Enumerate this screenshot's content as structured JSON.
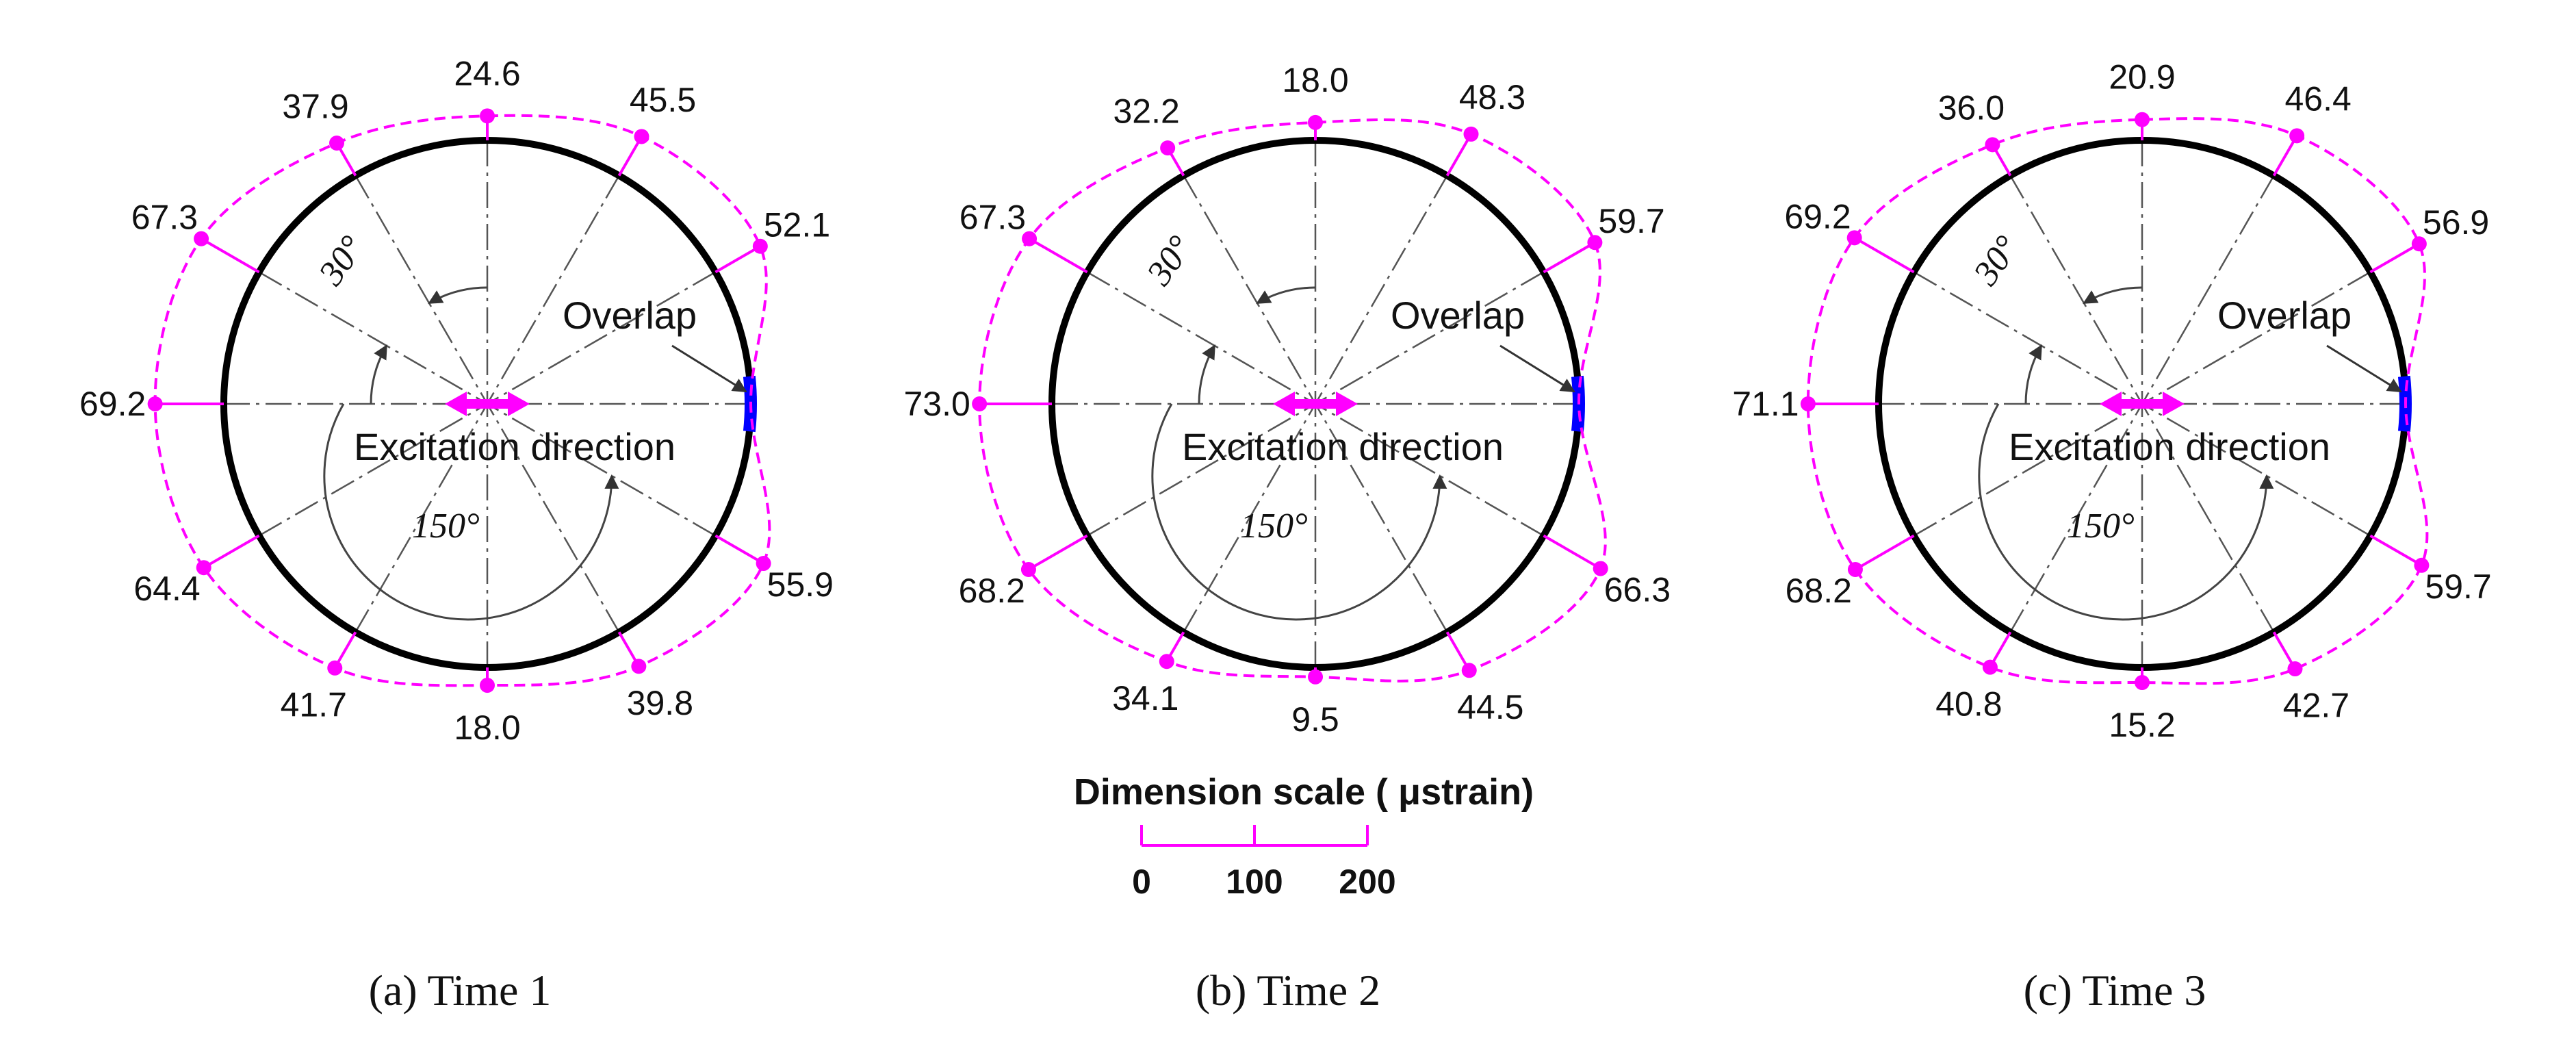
{
  "colors": {
    "circle": "#000000",
    "strain": "#ff00ff",
    "overlap": "#0000ff",
    "axes": "#555555",
    "text": "#111111"
  },
  "angle_labels": {
    "small": "30°",
    "large": "150°"
  },
  "annotations": {
    "overlap": "Overlap",
    "excitation": "Excitation direction"
  },
  "scale": {
    "title": "Dimension scale ( μstrain)",
    "ticks": [
      "0",
      "100",
      "200"
    ],
    "tick_values": [
      0,
      100,
      200
    ]
  },
  "panels": [
    {
      "caption": "(a) Time 1",
      "angles": [
        90,
        60,
        30,
        0,
        -30,
        -60,
        -90,
        -120,
        -150,
        180,
        150,
        120
      ],
      "values": [
        "24.6",
        "45.5",
        "52.1",
        "",
        "55.9",
        "39.8",
        "18.0",
        "41.7",
        "64.4",
        "69.2",
        "67.3",
        "37.9"
      ]
    },
    {
      "caption": "(b) Time 2",
      "angles": [
        90,
        60,
        30,
        0,
        -30,
        -60,
        -90,
        -120,
        -150,
        180,
        150,
        120
      ],
      "values": [
        "18.0",
        "48.3",
        "59.7",
        "",
        "66.3",
        "44.5",
        "9.5",
        "34.1",
        "68.2",
        "73.0",
        "67.3",
        "32.2"
      ]
    },
    {
      "caption": "(c) Time 3",
      "angles": [
        90,
        60,
        30,
        0,
        -30,
        -60,
        -90,
        -120,
        -150,
        180,
        150,
        120
      ],
      "values": [
        "20.9",
        "46.4",
        "56.9",
        "",
        "59.7",
        "42.7",
        "15.2",
        "40.8",
        "68.2",
        "71.1",
        "69.2",
        "36.0"
      ]
    }
  ]
}
